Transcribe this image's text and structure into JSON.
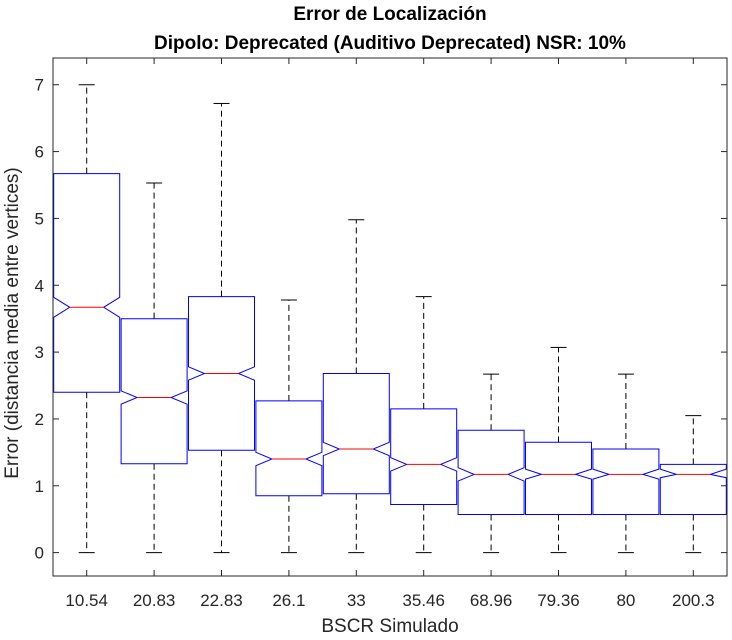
{
  "chart_data": {
    "type": "boxplot",
    "title": "Error de Localización",
    "subtitle": "Dipolo: Deprecated (Auditivo Deprecated) NSR: 10%",
    "xlabel": "BSCR Simulado",
    "ylabel": "Error (distancia media entre vertices)",
    "ylim": [
      -0.35,
      7.4
    ],
    "yticks": [
      0,
      1,
      2,
      3,
      4,
      5,
      6,
      7
    ],
    "grid": false,
    "notched": true,
    "categories": [
      "10.54",
      "20.83",
      "22.83",
      "26.1",
      "33",
      "35.46",
      "68.96",
      "79.36",
      "80",
      "200.3"
    ],
    "boxes": [
      {
        "whisker_low": 0,
        "q1": 2.4,
        "median": 3.67,
        "q3": 5.67,
        "whisker_high": 7.0,
        "notch_low": 3.52,
        "notch_high": 3.82
      },
      {
        "whisker_low": 0,
        "q1": 1.33,
        "median": 2.32,
        "q3": 3.5,
        "whisker_high": 5.53,
        "notch_low": 2.22,
        "notch_high": 2.42
      },
      {
        "whisker_low": 0,
        "q1": 1.53,
        "median": 2.68,
        "q3": 3.83,
        "whisker_high": 6.72,
        "notch_low": 2.58,
        "notch_high": 2.78
      },
      {
        "whisker_low": 0,
        "q1": 0.85,
        "median": 1.4,
        "q3": 2.27,
        "whisker_high": 3.78,
        "notch_low": 1.3,
        "notch_high": 1.5
      },
      {
        "whisker_low": 0,
        "q1": 0.88,
        "median": 1.55,
        "q3": 2.68,
        "whisker_high": 4.98,
        "notch_low": 1.45,
        "notch_high": 1.65
      },
      {
        "whisker_low": 0,
        "q1": 0.72,
        "median": 1.32,
        "q3": 2.15,
        "whisker_high": 3.83,
        "notch_low": 1.22,
        "notch_high": 1.42
      },
      {
        "whisker_low": 0,
        "q1": 0.57,
        "median": 1.17,
        "q3": 1.83,
        "whisker_high": 2.67,
        "notch_low": 1.07,
        "notch_high": 1.27
      },
      {
        "whisker_low": 0,
        "q1": 0.57,
        "median": 1.17,
        "q3": 1.65,
        "whisker_high": 3.07,
        "notch_low": 1.1,
        "notch_high": 1.25
      },
      {
        "whisker_low": 0,
        "q1": 0.57,
        "median": 1.17,
        "q3": 1.55,
        "whisker_high": 2.67,
        "notch_low": 1.1,
        "notch_high": 1.25
      },
      {
        "whisker_low": 0,
        "q1": 0.57,
        "median": 1.17,
        "q3": 1.32,
        "whisker_high": 2.05,
        "notch_low": 1.12,
        "notch_high": 1.25
      }
    ],
    "colors": {
      "box": "#0000ff",
      "median": "#ff0000",
      "whisker": "#000000",
      "axis": "#262626"
    }
  }
}
